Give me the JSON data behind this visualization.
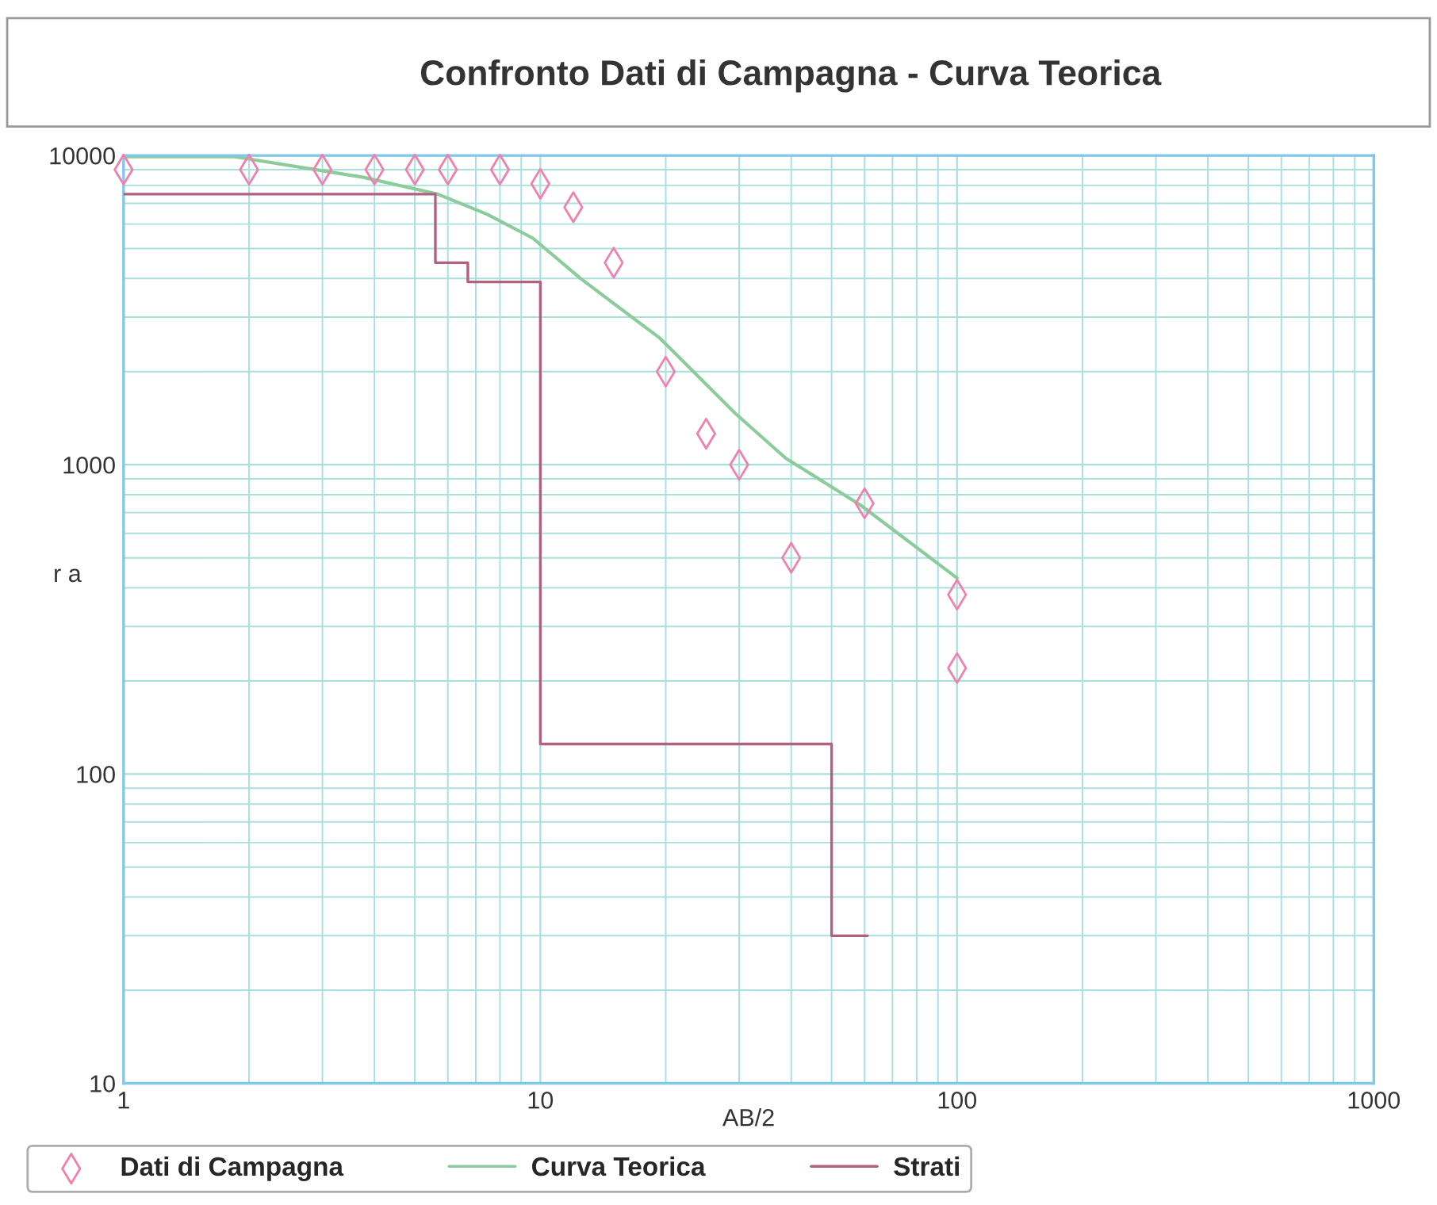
{
  "chart_data": {
    "type": "scatter",
    "title": "Confronto Dati di Campagna - Curva Teorica",
    "xlabel": "AB/2",
    "ylabel": "r a",
    "log": "xy",
    "xlim": [
      1,
      1000
    ],
    "ylim": [
      10,
      10000
    ],
    "xticks": [
      1,
      10,
      100,
      1000
    ],
    "yticks": [
      10,
      100,
      1000,
      10000
    ],
    "grid": true,
    "legend": "bottom",
    "series": [
      {
        "name": "Dati di Campagna",
        "marker": "diamond",
        "color": "#f080b0",
        "x": [
          1,
          2,
          3,
          4,
          5,
          6,
          8,
          10,
          12,
          15,
          20,
          25,
          30,
          40,
          60,
          100,
          100
        ],
        "values": [
          9000,
          9000,
          9000,
          9000,
          9000,
          9000,
          9000,
          8100,
          6800,
          4500,
          2000,
          1260,
          1000,
          500,
          750,
          380,
          220
        ]
      },
      {
        "name": "Curva Teorica",
        "type": "line",
        "color": "#8ccc9c",
        "x": [
          1,
          1.85,
          3.76,
          5.67,
          7.46,
          9.6,
          12.5,
          19.4,
          29.3,
          38.8,
          58.7,
          100
        ],
        "values": [
          9900,
          9900,
          8500,
          7500,
          6450,
          5400,
          4000,
          2560,
          1470,
          1050,
          740,
          430
        ]
      },
      {
        "name": "Strati",
        "type": "step",
        "color": "#b06080",
        "x": [
          1,
          5.6,
          6.7,
          10,
          50,
          61
        ],
        "values": [
          7500,
          4500,
          3900,
          125,
          30,
          30
        ]
      }
    ]
  }
}
